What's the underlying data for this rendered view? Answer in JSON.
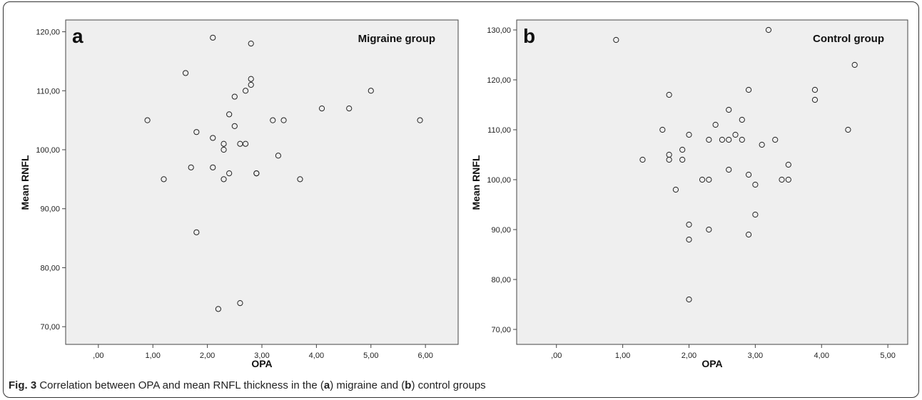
{
  "caption": {
    "fig": "Fig. 3",
    "pre": "Correlation between OPA and mean RNFL thickness in the (",
    "l1": "a",
    "mid": ") migraine and (",
    "l2": "b",
    "post": ") control groups"
  },
  "chart_data": [
    {
      "type": "scatter",
      "panel_label": "a",
      "group_label": "Migraine group",
      "xlabel": "OPA",
      "ylabel": "Mean RNFL",
      "xlim": [
        -0.6,
        6.6
      ],
      "ylim": [
        67,
        122
      ],
      "x_ticks": [
        ",00",
        "1,00",
        "2,00",
        "3,00",
        "4,00",
        "5,00",
        "6,00"
      ],
      "x_tick_values": [
        0,
        1,
        2,
        3,
        4,
        5,
        6
      ],
      "y_ticks": [
        "70,00",
        "80,00",
        "90,00",
        "100,00",
        "110,00",
        "120,00"
      ],
      "y_tick_values": [
        70,
        80,
        90,
        100,
        110,
        120
      ],
      "points": [
        [
          0.9,
          105
        ],
        [
          1.2,
          95
        ],
        [
          1.6,
          113
        ],
        [
          1.7,
          97
        ],
        [
          1.8,
          103
        ],
        [
          1.8,
          86
        ],
        [
          2.1,
          119
        ],
        [
          2.1,
          102
        ],
        [
          2.1,
          97
        ],
        [
          2.2,
          73
        ],
        [
          2.3,
          101
        ],
        [
          2.3,
          100
        ],
        [
          2.3,
          95
        ],
        [
          2.4,
          106
        ],
        [
          2.4,
          96
        ],
        [
          2.5,
          109
        ],
        [
          2.5,
          104
        ],
        [
          2.6,
          101
        ],
        [
          2.6,
          74
        ],
        [
          2.7,
          110
        ],
        [
          2.7,
          101
        ],
        [
          2.8,
          118
        ],
        [
          2.8,
          112
        ],
        [
          2.8,
          111
        ],
        [
          2.9,
          96
        ],
        [
          2.9,
          96
        ],
        [
          3.2,
          105
        ],
        [
          3.3,
          99
        ],
        [
          3.4,
          105
        ],
        [
          3.7,
          95
        ],
        [
          4.1,
          107
        ],
        [
          4.6,
          107
        ],
        [
          5.0,
          110
        ],
        [
          5.9,
          105
        ]
      ]
    },
    {
      "type": "scatter",
      "panel_label": "b",
      "group_label": "Control group",
      "xlabel": "OPA",
      "ylabel": "Mean RNFL",
      "xlim": [
        -0.6,
        5.3
      ],
      "ylim": [
        67,
        132
      ],
      "x_ticks": [
        ",00",
        "1,00",
        "2,00",
        "3,00",
        "4,00",
        "5,00"
      ],
      "x_tick_values": [
        0,
        1,
        2,
        3,
        4,
        5
      ],
      "y_ticks": [
        "70,00",
        "80,00",
        "90,00",
        "100,00",
        "110,00",
        "120,00",
        "130,00"
      ],
      "y_tick_values": [
        70,
        80,
        90,
        100,
        110,
        120,
        130
      ],
      "points": [
        [
          0.9,
          128
        ],
        [
          1.3,
          104
        ],
        [
          1.6,
          110
        ],
        [
          1.7,
          117
        ],
        [
          1.7,
          105
        ],
        [
          1.7,
          104
        ],
        [
          1.8,
          98
        ],
        [
          1.9,
          106
        ],
        [
          1.9,
          104
        ],
        [
          2.0,
          109
        ],
        [
          2.0,
          91
        ],
        [
          2.0,
          88
        ],
        [
          2.0,
          76
        ],
        [
          2.2,
          100
        ],
        [
          2.3,
          108
        ],
        [
          2.3,
          100
        ],
        [
          2.3,
          90
        ],
        [
          2.4,
          111
        ],
        [
          2.5,
          108
        ],
        [
          2.6,
          114
        ],
        [
          2.6,
          108
        ],
        [
          2.6,
          102
        ],
        [
          2.7,
          109
        ],
        [
          2.8,
          112
        ],
        [
          2.8,
          108
        ],
        [
          2.9,
          118
        ],
        [
          2.9,
          101
        ],
        [
          2.9,
          89
        ],
        [
          3.0,
          99
        ],
        [
          3.0,
          93
        ],
        [
          3.1,
          107
        ],
        [
          3.2,
          130
        ],
        [
          3.3,
          108
        ],
        [
          3.4,
          100
        ],
        [
          3.5,
          103
        ],
        [
          3.5,
          100
        ],
        [
          3.9,
          118
        ],
        [
          3.9,
          116
        ],
        [
          4.4,
          110
        ],
        [
          4.5,
          123
        ]
      ]
    }
  ]
}
